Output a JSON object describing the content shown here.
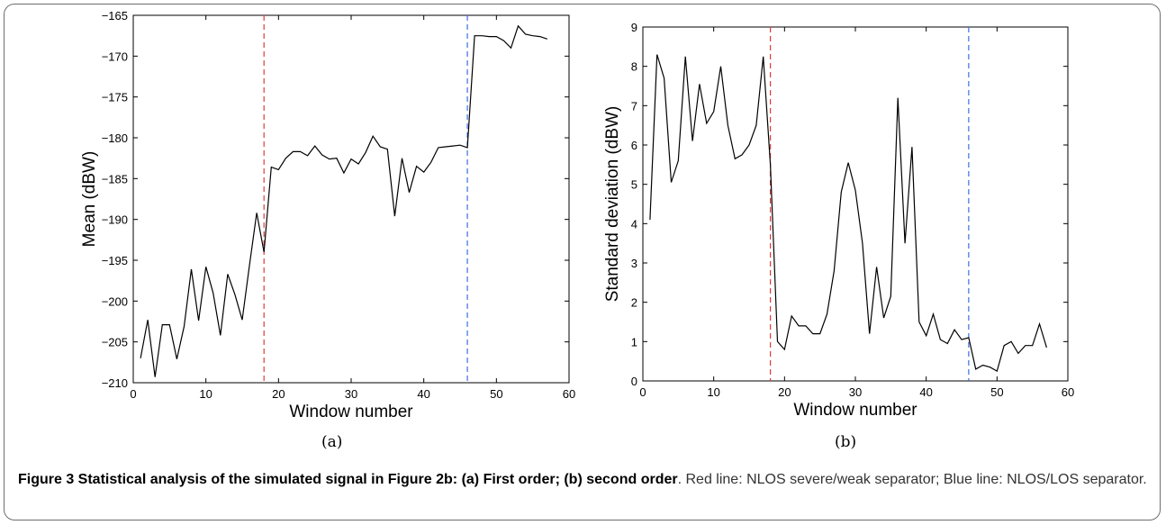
{
  "chart_data": [
    {
      "type": "line",
      "title": "",
      "xlabel": "Window number",
      "ylabel": "Mean (dBW)",
      "xlim": [
        0,
        60
      ],
      "ylim": [
        -210,
        -165
      ],
      "xticks": [
        0,
        10,
        20,
        30,
        40,
        50,
        60
      ],
      "yticks": [
        -210,
        -205,
        -200,
        -195,
        -190,
        -185,
        -180,
        -175,
        -170,
        -165
      ],
      "grid": false,
      "series": [
        {
          "color": "#000000",
          "x": [
            1,
            2,
            3,
            4,
            5,
            6,
            7,
            8,
            9,
            10,
            11,
            12,
            13,
            14,
            15,
            16,
            17,
            18,
            19,
            20,
            21,
            22,
            23,
            24,
            25,
            26,
            27,
            28,
            29,
            30,
            31,
            32,
            33,
            34,
            35,
            36,
            37,
            38,
            39,
            40,
            41,
            42,
            43,
            44,
            45,
            46,
            47,
            48,
            49,
            50,
            51,
            52,
            53,
            54,
            55,
            56,
            57
          ],
          "y": [
            -207.0,
            -202.3,
            -209.3,
            -202.9,
            -202.9,
            -207.1,
            -203.1,
            -196.1,
            -202.4,
            -195.8,
            -199.0,
            -204.2,
            -196.7,
            -199.2,
            -202.3,
            -195.6,
            -189.2,
            -194.0,
            -183.6,
            -183.9,
            -182.5,
            -181.7,
            -181.7,
            -182.2,
            -181.0,
            -182.1,
            -182.6,
            -182.5,
            -184.3,
            -182.6,
            -183.2,
            -181.8,
            -179.8,
            -181.1,
            -181.4,
            -189.6,
            -182.5,
            -186.7,
            -183.5,
            -184.2,
            -183.0,
            -181.2,
            -181.1,
            -181.0,
            -180.9,
            -181.2,
            -167.5,
            -167.5,
            -167.6,
            -167.6,
            -168.1,
            -169.0,
            -166.3,
            -167.3,
            -167.5,
            -167.6,
            -167.9
          ]
        }
      ],
      "vlines": [
        {
          "x": 18,
          "color": "#e23a3a"
        },
        {
          "x": 46,
          "color": "#3a6ee2"
        }
      ],
      "sublabel": "(a)"
    },
    {
      "type": "line",
      "title": "",
      "xlabel": "Window number",
      "ylabel": "Standard deviation (dBW)",
      "xlim": [
        0,
        60
      ],
      "ylim": [
        0,
        9
      ],
      "xticks": [
        0,
        10,
        20,
        30,
        40,
        50,
        60
      ],
      "yticks": [
        0,
        1,
        2,
        3,
        4,
        5,
        6,
        7,
        8,
        9
      ],
      "grid": false,
      "series": [
        {
          "color": "#000000",
          "x": [
            1,
            2,
            3,
            4,
            5,
            6,
            7,
            8,
            9,
            10,
            11,
            12,
            13,
            14,
            15,
            16,
            17,
            18,
            19,
            20,
            21,
            22,
            23,
            24,
            25,
            26,
            27,
            28,
            29,
            30,
            31,
            32,
            33,
            34,
            35,
            36,
            37,
            38,
            39,
            40,
            41,
            42,
            43,
            44,
            45,
            46,
            47,
            48,
            49,
            50,
            51,
            52,
            53,
            54,
            55,
            56,
            57
          ],
          "y": [
            4.1,
            8.3,
            7.7,
            5.05,
            5.6,
            8.25,
            6.1,
            7.55,
            6.55,
            6.85,
            8.0,
            6.5,
            5.65,
            5.75,
            6.0,
            6.5,
            8.25,
            5.5,
            1.0,
            0.8,
            1.65,
            1.4,
            1.4,
            1.2,
            1.2,
            1.7,
            2.8,
            4.8,
            5.55,
            4.85,
            3.5,
            1.2,
            2.9,
            1.6,
            2.15,
            7.2,
            3.5,
            5.95,
            1.5,
            1.15,
            1.7,
            1.05,
            0.95,
            1.3,
            1.05,
            1.1,
            0.3,
            0.4,
            0.35,
            0.25,
            0.9,
            1.0,
            0.7,
            0.9,
            0.9,
            1.45,
            0.85
          ]
        }
      ],
      "vlines": [
        {
          "x": 18,
          "color": "#e23a3a"
        },
        {
          "x": 46,
          "color": "#3a6ee2"
        }
      ],
      "sublabel": "(b)"
    }
  ],
  "caption": {
    "label": "Figure 3 Statistical analysis of the simulated signal in Figure 2b: (a) First order; (b) second order",
    "text": ". Red line: NLOS severe/weak separator; Blue line: NLOS/LOS separator."
  }
}
